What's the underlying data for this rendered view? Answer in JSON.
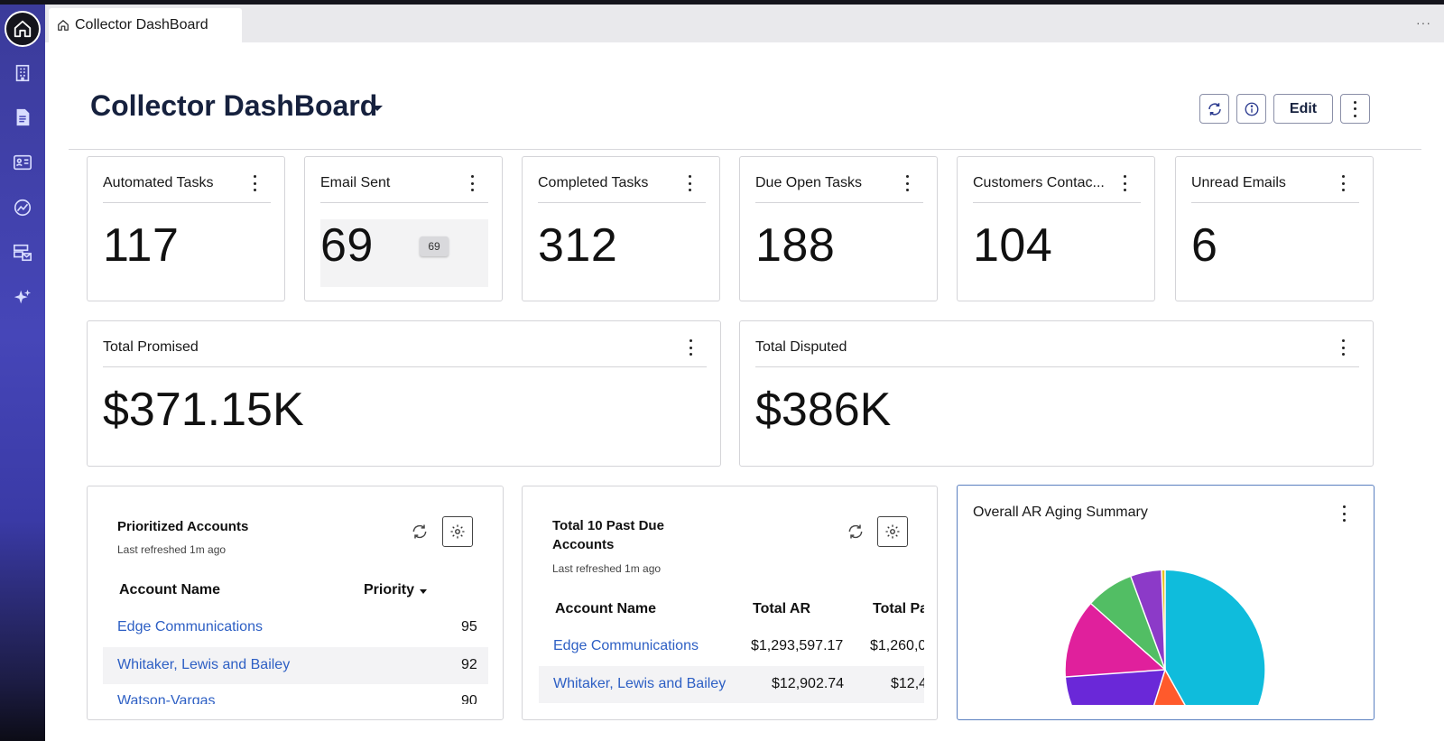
{
  "tab": {
    "label": "Collector DashBoard",
    "more": "···"
  },
  "page": {
    "title": "Collector DashBoard"
  },
  "header_buttons": {
    "edit": "Edit"
  },
  "metrics": [
    {
      "title": "Automated Tasks",
      "value": "117"
    },
    {
      "title": "Email Sent",
      "value": "69",
      "tooltip": "69"
    },
    {
      "title": "Completed Tasks",
      "value": "312"
    },
    {
      "title": "Due Open Tasks",
      "value": "188"
    },
    {
      "title": "Customers Contac...",
      "value": "104"
    },
    {
      "title": "Unread Emails",
      "value": "6"
    }
  ],
  "totals": [
    {
      "title": "Total Promised",
      "value": "$371.15K"
    },
    {
      "title": "Total Disputed",
      "value": "$386K"
    }
  ],
  "prioritized": {
    "title": "Prioritized Accounts",
    "refreshed": "Last refreshed 1m ago",
    "columns": [
      "Account Name",
      "Priority"
    ],
    "rows": [
      {
        "name": "Edge Communications",
        "priority": "95"
      },
      {
        "name": "Whitaker, Lewis and Bailey",
        "priority": "92"
      },
      {
        "name": "Watson-Vargas",
        "priority": "90"
      }
    ]
  },
  "past_due": {
    "title_line1": "Total 10 Past Due",
    "title_line2": "Accounts",
    "refreshed": "Last refreshed 1m ago",
    "columns": [
      "Account Name",
      "Total AR",
      "Total Pa"
    ],
    "rows": [
      {
        "name": "Edge Communications",
        "total_ar": "$1,293,597.17",
        "total_past": "$1,260,0"
      },
      {
        "name": "Whitaker, Lewis and Bailey",
        "total_ar": "$12,902.74",
        "total_past": "$12,4"
      }
    ]
  },
  "aging": {
    "title": "Overall AR Aging Summary",
    "colors": [
      "#0fbcdc",
      "#ff5a2c",
      "#6a28d8",
      "#e0209c",
      "#52be64",
      "#8c3ac8",
      "#e8c020"
    ]
  }
}
